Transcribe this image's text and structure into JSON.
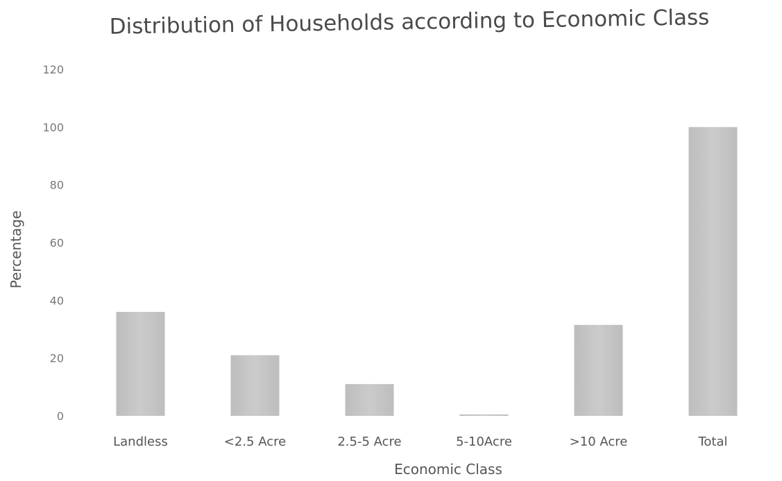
{
  "chart_data": {
    "type": "bar",
    "title": "Distribution of Households according to Economic Class",
    "xlabel": "Economic Class",
    "ylabel": "Percentage",
    "categories": [
      "Landless",
      "<2.5 Acre",
      "2.5-5 Acre",
      "5-10Acre",
      ">10 Acre",
      "Total"
    ],
    "values": [
      36,
      21,
      11,
      0.5,
      31.5,
      100
    ],
    "ylim": [
      0,
      120
    ],
    "yticks": [
      0,
      20,
      40,
      60,
      80,
      100,
      120
    ],
    "grid": false,
    "bar_color": "#c4c4c4"
  }
}
